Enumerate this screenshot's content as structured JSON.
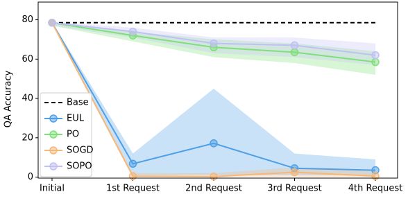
{
  "chart_data": {
    "type": "line",
    "y_label": "QA Accuracy",
    "categories": [
      "Initial",
      "1st Request",
      "2nd Request",
      "3rd Request",
      "4th Request"
    ],
    "ylim": [
      -0.5,
      89
    ],
    "yticks": [
      0,
      20,
      40,
      60,
      80
    ],
    "grid": false,
    "legend": "lower left",
    "series": [
      {
        "name": "Base",
        "color": "#000000",
        "dashed": true,
        "values": [
          78.5,
          78.5,
          78.5,
          78.5,
          78.5
        ]
      },
      {
        "name": "EUL",
        "color": "#4f9fe6",
        "values": [
          78.5,
          6.8,
          17.2,
          4.5,
          3.5
        ],
        "lower": [
          78,
          1,
          1,
          1,
          1
        ],
        "upper": [
          79,
          12,
          45,
          12,
          9
        ]
      },
      {
        "name": "PO",
        "color": "#7ee077",
        "values": [
          78.5,
          72,
          66,
          63.5,
          58.5
        ],
        "lower": [
          77,
          69,
          61,
          58,
          52
        ],
        "upper": [
          79,
          74,
          70,
          68,
          64
        ]
      },
      {
        "name": "SOGD",
        "color": "#f5b77a",
        "values": [
          78.5,
          0.5,
          0.3,
          2.5,
          0.5
        ],
        "lower": [
          78,
          0,
          0,
          0,
          0
        ],
        "upper": [
          79,
          2,
          2,
          5,
          3
        ]
      },
      {
        "name": "SOPO",
        "color": "#c0c0f4",
        "values": [
          78.5,
          74,
          68,
          67,
          62
        ],
        "lower": [
          77,
          71,
          63,
          61,
          57
        ],
        "upper": [
          79,
          76,
          71,
          71,
          68
        ]
      }
    ]
  }
}
